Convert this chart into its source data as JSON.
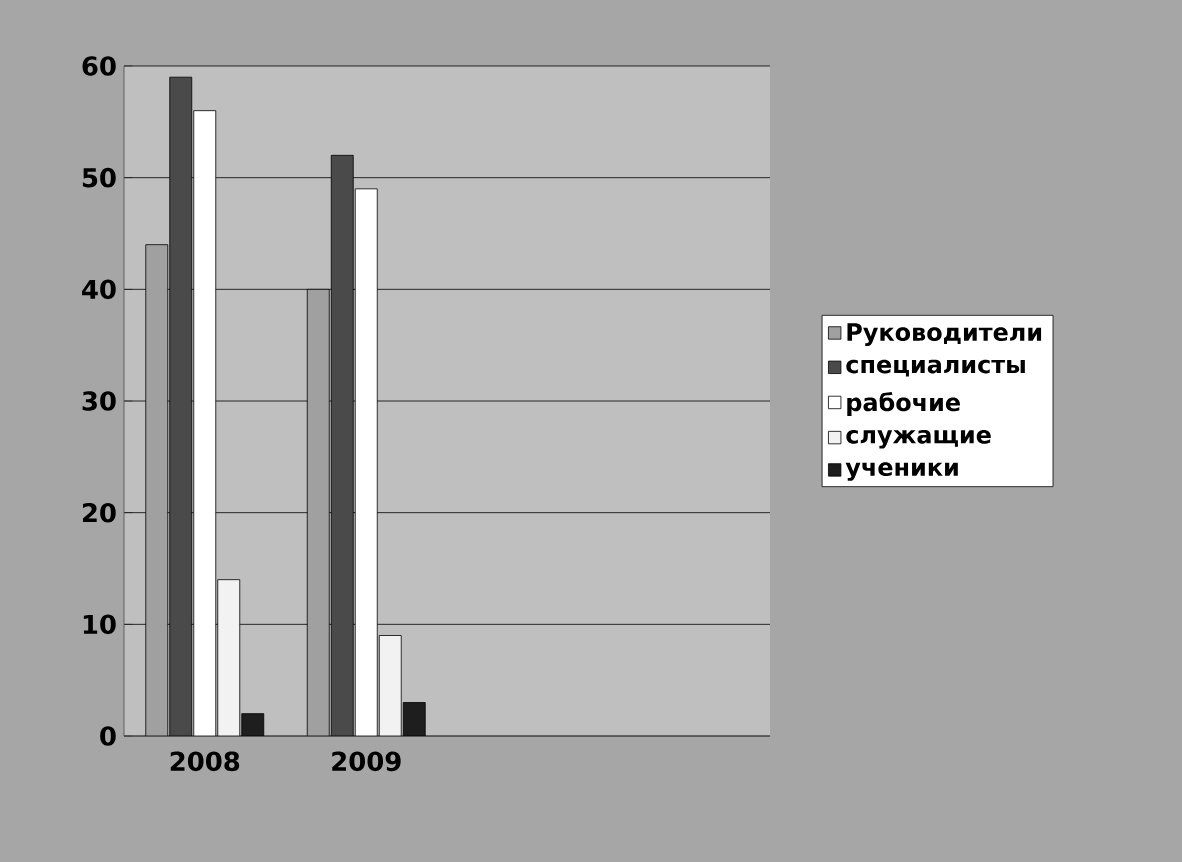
{
  "chart_data": {
    "type": "bar",
    "categories": [
      "2008",
      "2009",
      null,
      null
    ],
    "series": [
      {
        "name": "Руководители",
        "color": "#a0a0a0",
        "values": [
          44,
          40,
          null,
          null
        ]
      },
      {
        "name": "специалисты",
        "color": "#4a4a4a",
        "values": [
          59,
          52,
          null,
          null
        ]
      },
      {
        "name": "рабочие",
        "color": "#ffffff",
        "values": [
          56,
          49,
          null,
          null
        ]
      },
      {
        "name": "служащие",
        "color": "#f2f2f2",
        "values": [
          14,
          9,
          null,
          null
        ]
      },
      {
        "name": "ученики",
        "color": "#1e1e1e",
        "values": [
          2,
          3,
          null,
          null
        ]
      }
    ],
    "ylim": [
      0,
      60
    ],
    "yticks": [
      0,
      10,
      20,
      30,
      40,
      50,
      60
    ],
    "grid": "y",
    "legend": "right"
  }
}
